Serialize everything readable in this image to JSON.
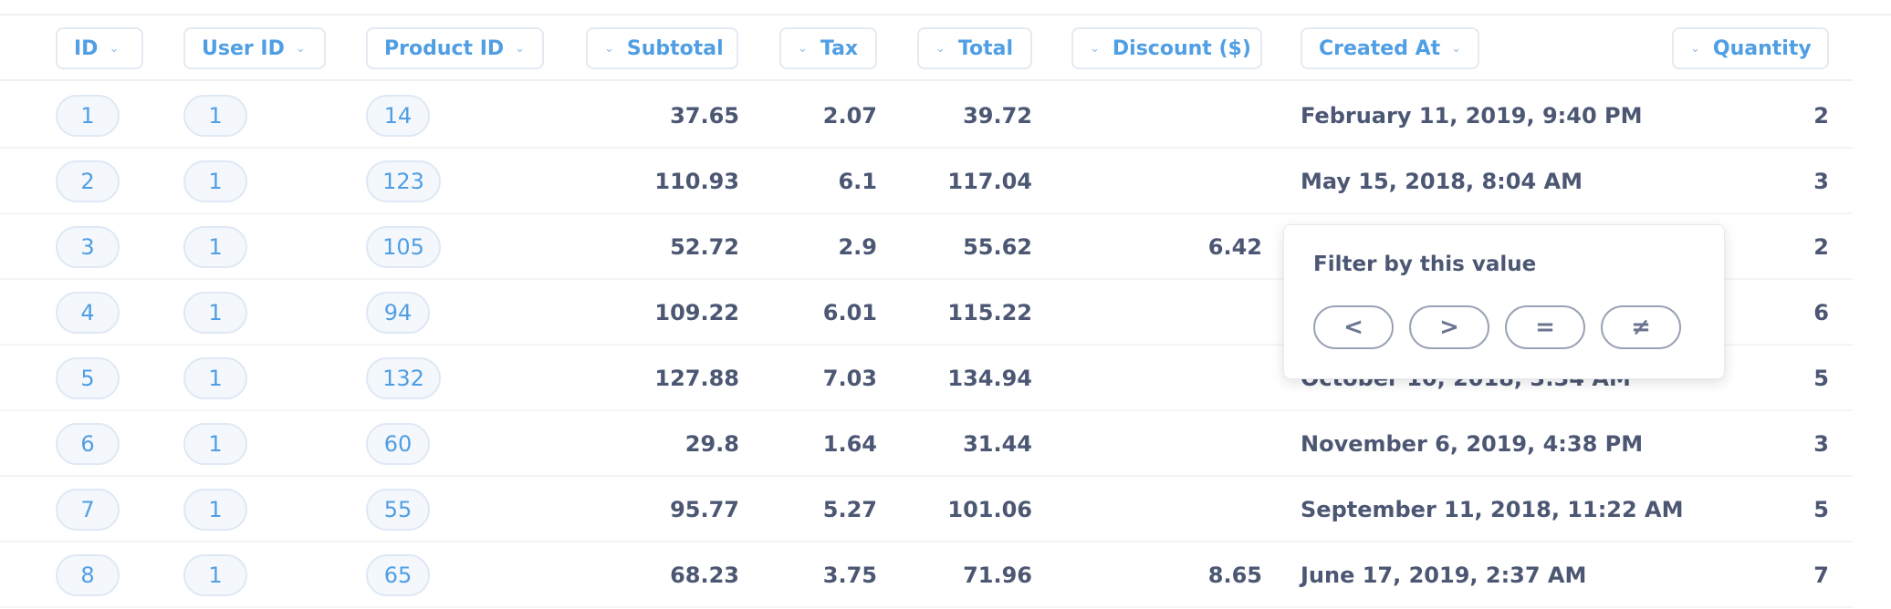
{
  "columns": {
    "id": "ID",
    "user_id": "User ID",
    "product_id": "Product ID",
    "subtotal": "Subtotal",
    "tax": "Tax",
    "total": "Total",
    "discount": "Discount ($)",
    "created_at": "Created At",
    "quantity": "Quantity"
  },
  "chevron_icon": "chevron-down",
  "rows": [
    {
      "id": "1",
      "user_id": "1",
      "product_id": "14",
      "subtotal": "37.65",
      "tax": "2.07",
      "total": "39.72",
      "discount": "",
      "created_at": "February 11, 2019, 9:40 PM",
      "quantity": "2"
    },
    {
      "id": "2",
      "user_id": "1",
      "product_id": "123",
      "subtotal": "110.93",
      "tax": "6.1",
      "total": "117.04",
      "discount": "",
      "created_at": "May 15, 2018, 8:04 AM",
      "quantity": "3"
    },
    {
      "id": "3",
      "user_id": "1",
      "product_id": "105",
      "subtotal": "52.72",
      "tax": "2.9",
      "total": "55.62",
      "discount": "6.42",
      "created_at": "",
      "quantity": "2"
    },
    {
      "id": "4",
      "user_id": "1",
      "product_id": "94",
      "subtotal": "109.22",
      "tax": "6.01",
      "total": "115.22",
      "discount": "",
      "created_at": "",
      "quantity": "6"
    },
    {
      "id": "5",
      "user_id": "1",
      "product_id": "132",
      "subtotal": "127.88",
      "tax": "7.03",
      "total": "134.94",
      "discount": "",
      "created_at": "October 10, 2018, 3:34 AM",
      "quantity": "5"
    },
    {
      "id": "6",
      "user_id": "1",
      "product_id": "60",
      "subtotal": "29.8",
      "tax": "1.64",
      "total": "31.44",
      "discount": "",
      "created_at": "November 6, 2019, 4:38 PM",
      "quantity": "3"
    },
    {
      "id": "7",
      "user_id": "1",
      "product_id": "55",
      "subtotal": "95.77",
      "tax": "5.27",
      "total": "101.06",
      "discount": "",
      "created_at": "September 11, 2018, 11:22 AM",
      "quantity": "5"
    },
    {
      "id": "8",
      "user_id": "1",
      "product_id": "65",
      "subtotal": "68.23",
      "tax": "3.75",
      "total": "71.96",
      "discount": "8.65",
      "created_at": "June 17, 2019, 2:37 AM",
      "quantity": "7"
    }
  ],
  "popover": {
    "title": "Filter by this value",
    "buttons": {
      "less_than": "<",
      "greater_than": ">",
      "equals": "=",
      "not_equals": "≠"
    }
  }
}
